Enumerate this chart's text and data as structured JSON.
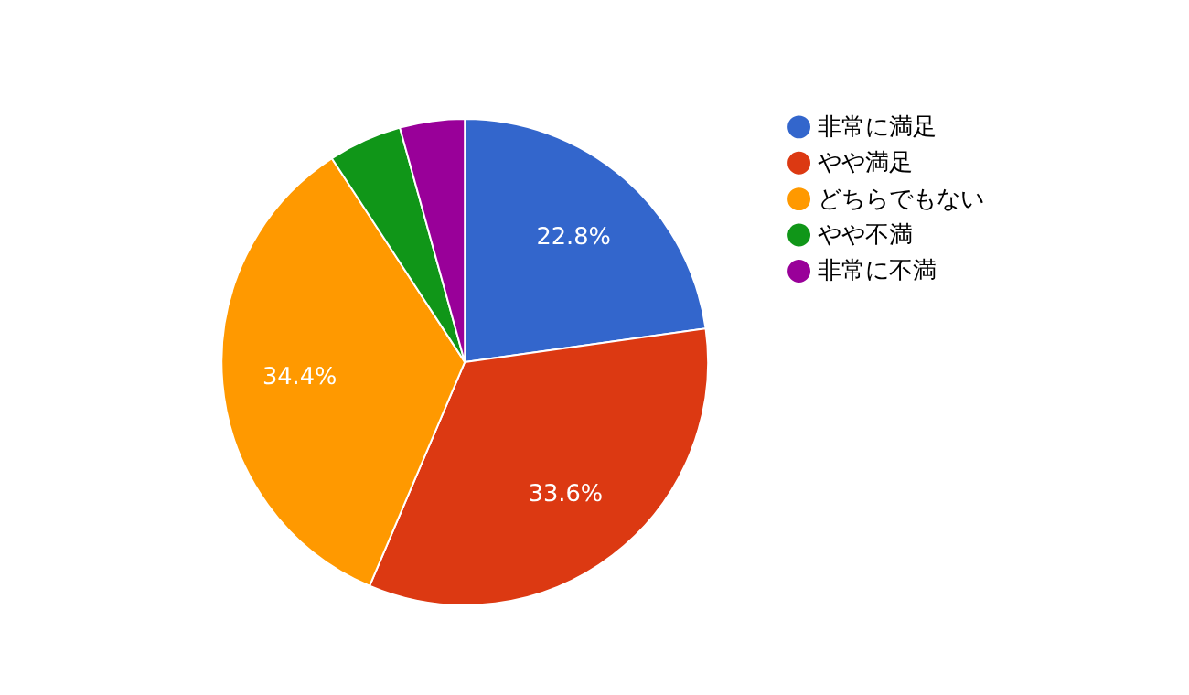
{
  "chart_data": {
    "type": "pie",
    "categories": [
      "非常に満足",
      "やや満足",
      "どちらでもない",
      "やや不満",
      "非常に不満"
    ],
    "values": [
      22.8,
      33.6,
      34.4,
      4.9,
      4.3
    ],
    "colors": [
      "#3366cc",
      "#dc3912",
      "#ff9900",
      "#109618",
      "#990099"
    ],
    "value_labels": [
      "22.8%",
      "33.6%",
      "34.4%",
      null,
      null
    ],
    "legend": "right"
  }
}
